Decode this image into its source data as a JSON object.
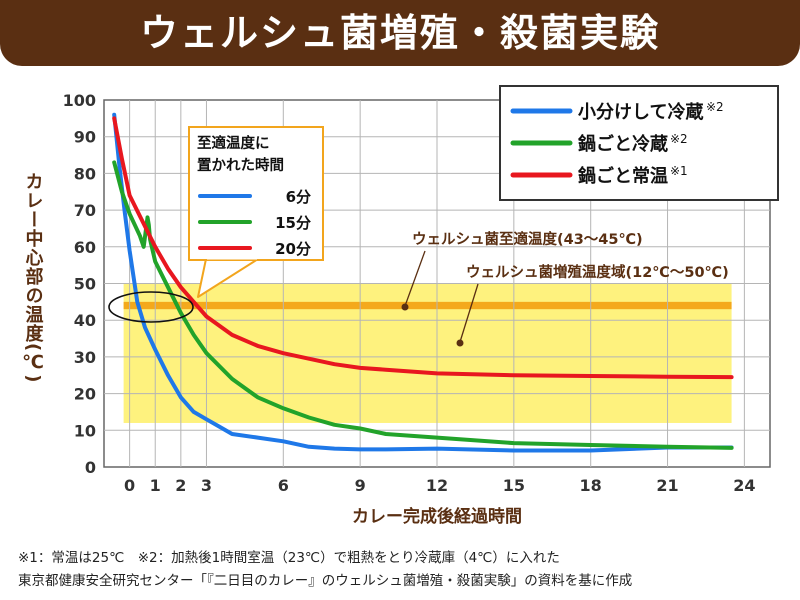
{
  "title": "ウェルシュ菌増殖・殺菌実験",
  "chart_data": {
    "type": "line",
    "ylabel": "カレー中心部の温度(℃)",
    "xlabel": "カレー完成後経過時間",
    "xlim": [
      -1,
      25
    ],
    "ylim": [
      0,
      100
    ],
    "xticks": [
      0,
      1,
      2,
      3,
      6,
      9,
      12,
      15,
      18,
      21,
      24
    ],
    "yticks": [
      0,
      10,
      20,
      30,
      40,
      50,
      60,
      70,
      80,
      90,
      100
    ],
    "grid": true,
    "legend_position": "top-right",
    "series": [
      {
        "name": "小分けして冷蔵",
        "note": "※2",
        "color": "#1f78e8",
        "x": [
          -0.6,
          -0.4,
          -0.2,
          0.0,
          0.3,
          0.6,
          1.0,
          1.5,
          2.0,
          2.5,
          3.0,
          3.5,
          4.0,
          5.0,
          6.0,
          7.0,
          8.0,
          9.0,
          10.0,
          12.0,
          15.0,
          18.0,
          21.0,
          23.5
        ],
        "y": [
          96,
          82,
          70,
          59,
          45,
          38,
          32,
          25,
          19,
          15,
          13,
          11,
          9,
          8,
          7,
          5.5,
          5,
          4.8,
          4.8,
          5,
          4.5,
          4.5,
          5.3,
          5.3
        ]
      },
      {
        "name": "鍋ごと冷蔵",
        "note": "※2",
        "color": "#22a32a",
        "x": [
          -0.6,
          -0.3,
          0.0,
          0.4,
          0.55,
          0.7,
          0.75,
          0.8,
          1.0,
          1.5,
          2.0,
          2.5,
          3.0,
          4.0,
          5.0,
          6.0,
          7.0,
          8.0,
          9.0,
          10.0,
          12.0,
          15.0,
          18.0,
          21.0,
          23.5
        ],
        "y": [
          83,
          75,
          69,
          63,
          60,
          68,
          66,
          62,
          56,
          49,
          42,
          36,
          31,
          24,
          19,
          16,
          13.5,
          11.5,
          10.5,
          9,
          8,
          6.5,
          6,
          5.5,
          5.2
        ]
      },
      {
        "name": "鍋ごと常温",
        "note": "※1",
        "color": "#e8171f",
        "x": [
          -0.6,
          -0.3,
          0.0,
          0.5,
          1.0,
          1.5,
          2.0,
          2.5,
          3.0,
          4.0,
          5.0,
          6.0,
          7.0,
          8.0,
          9.0,
          10.0,
          12.0,
          15.0,
          18.0,
          21.0,
          23.5
        ],
        "y": [
          95,
          84,
          74,
          67,
          60,
          54,
          49,
          45,
          41,
          36,
          33,
          31,
          29.5,
          28,
          27,
          26.5,
          25.5,
          25,
          24.8,
          24.6,
          24.5
        ]
      }
    ],
    "bands": [
      {
        "label": "ウェルシュ菌増殖温度域(12℃〜50℃)",
        "from": 12,
        "to": 50,
        "color": "#fef27e"
      },
      {
        "label": "ウェルシュ菌至適温度(43〜45℃)",
        "from": 43,
        "to": 45,
        "color": "#f4a91c"
      }
    ],
    "inset_legend": {
      "title": [
        "至適温度に",
        "置かれた時間"
      ],
      "items": [
        {
          "series": "小分けして冷蔵",
          "value": "6分"
        },
        {
          "series": "鍋ごと冷蔵",
          "value": "15分"
        },
        {
          "series": "鍋ごと常温",
          "value": "20分"
        }
      ]
    }
  },
  "footnotes": [
    "※1：常温は25℃　※2：加熱後1時間室温（23℃）で粗熱をとり冷蔵庫（4℃）に入れた",
    "東京都健康安全研究センター「『二日目のカレー』のウェルシュ菌増殖・殺菌実験」の資料を基に作成"
  ]
}
